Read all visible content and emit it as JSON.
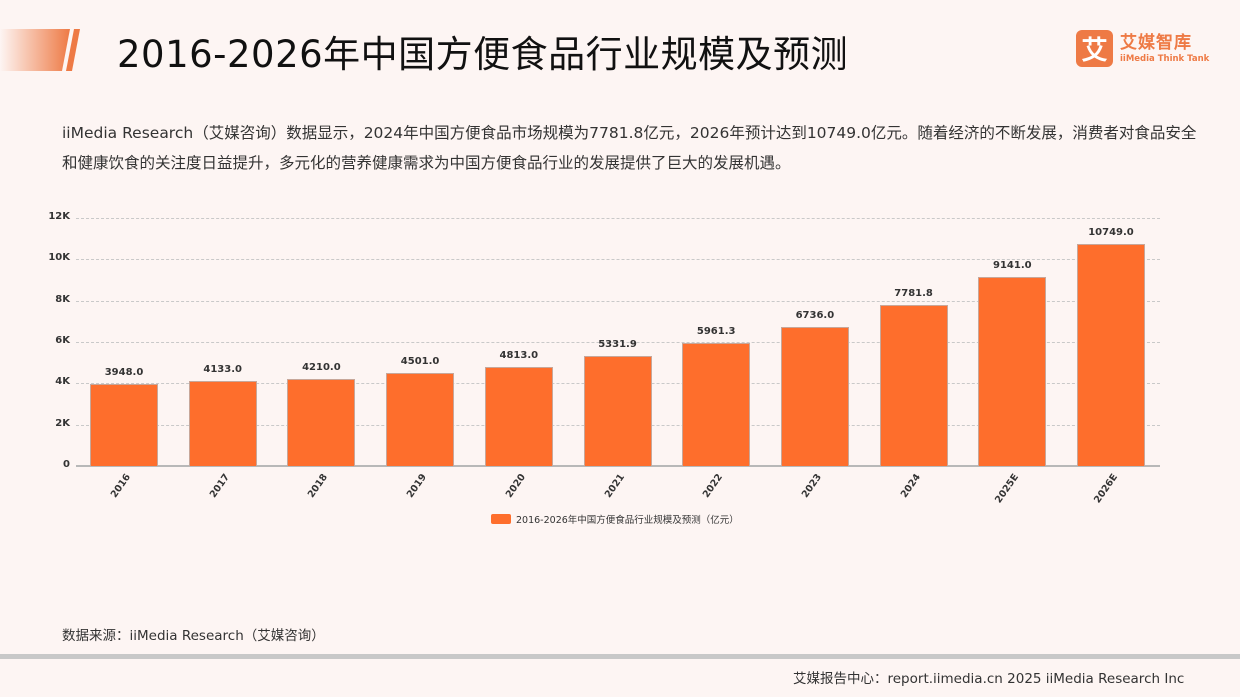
{
  "header": {
    "title": "2016-2026年中国方便食品行业规模及预测",
    "logo": {
      "mark": "艾",
      "name_cn": "艾媒智库",
      "name_en": "iiMedia Think Tank"
    }
  },
  "description": "iiMedia Research（艾媒咨询）数据显示，2024年中国方便食品市场规模为7781.8亿元，2026年预计达到10749.0亿元。随着经济的不断发展，消费者对食品安全和健康饮食的关注度日益提升，多元化的营养健康需求为中国方便食品行业的发展提供了巨大的发展机遇。",
  "colors": {
    "bar": "#fe6e2c",
    "brand": "#ee7a45"
  },
  "chart_data": {
    "type": "bar",
    "title": "",
    "categories": [
      "2016",
      "2017",
      "2018",
      "2019",
      "2020",
      "2021",
      "2022",
      "2023",
      "2024",
      "2025E",
      "2026E"
    ],
    "series": [
      {
        "name": "2016-2026年中国方便食品行业规模及预测（亿元）",
        "values": [
          3948.0,
          4133.0,
          4210.0,
          4501.0,
          4813.0,
          5331.9,
          5961.3,
          6736.0,
          7781.8,
          9141.0,
          10749.0
        ],
        "labels": [
          "3948.0",
          "4133.0",
          "4210.0",
          "4501.0",
          "4813.0",
          "5331.9",
          "5961.3",
          "6736.0",
          "7781.8",
          "9141.0",
          "10749.0"
        ]
      }
    ],
    "xlabel": "",
    "ylabel": "",
    "ylim": [
      0,
      12000
    ],
    "yticks": [
      "0",
      "2K",
      "4K",
      "6K",
      "8K",
      "10K",
      "12K"
    ],
    "grid": true,
    "legend_position": "bottom"
  },
  "source": "数据来源：iiMedia Research（艾媒咨询）",
  "footer": "艾媒报告中心：report.iimedia.cn   2025 iiMedia Research Inc"
}
